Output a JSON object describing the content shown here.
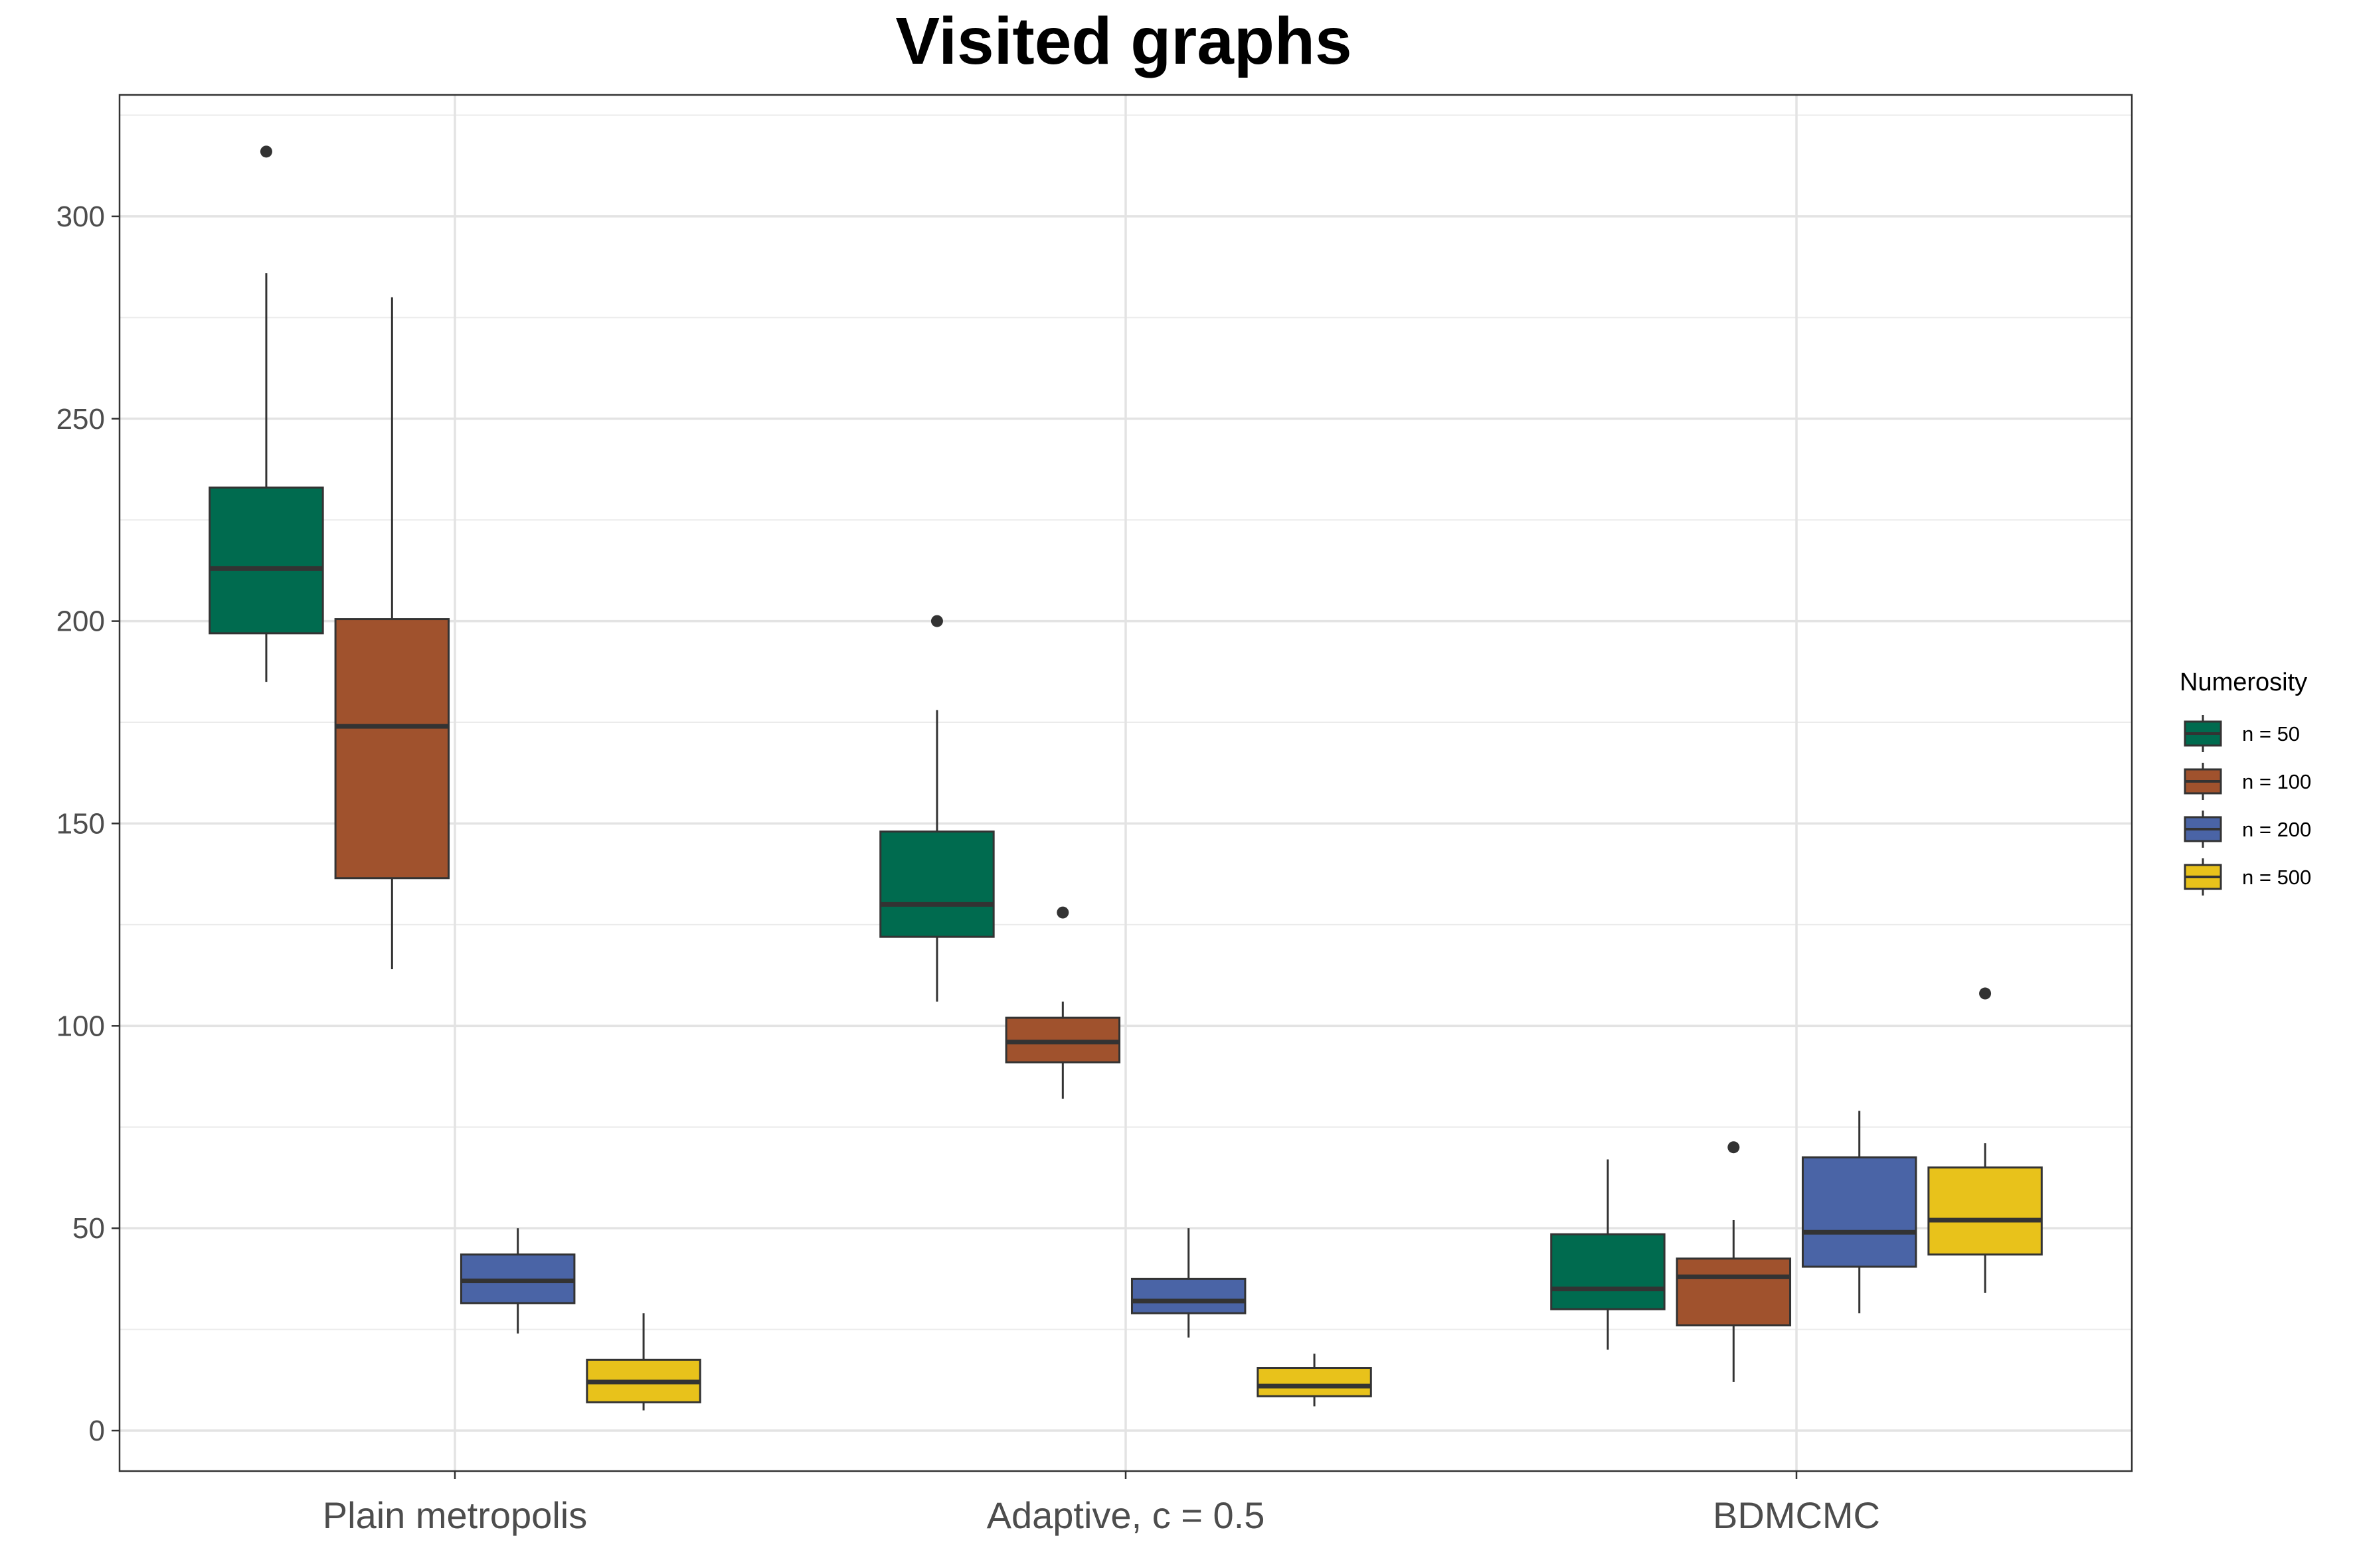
{
  "chart_data": {
    "type": "boxplot",
    "title": "Visited graphs",
    "xlabel": "",
    "ylabel": "",
    "ylim": [
      -10,
      330
    ],
    "yticks": [
      0,
      50,
      100,
      150,
      200,
      250,
      300
    ],
    "grid": true,
    "categories": [
      "Plain metropolis",
      "Adaptive, c = 0.5",
      "BDMCMC"
    ],
    "legend": {
      "title": "Numerosity",
      "position": "right"
    },
    "series": [
      {
        "name": "n = 50",
        "color": "#006b4f",
        "boxes": [
          {
            "whisker_low": 185,
            "q1": 197,
            "median": 213,
            "q3": 233,
            "whisker_high": 286,
            "outliers": [
              316
            ]
          },
          {
            "whisker_low": 106,
            "q1": 122,
            "median": 130,
            "q3": 148,
            "whisker_high": 178,
            "outliers": [
              200
            ]
          },
          {
            "whisker_low": 20,
            "q1": 30,
            "median": 35,
            "q3": 48.5,
            "whisker_high": 67,
            "outliers": []
          }
        ]
      },
      {
        "name": "n = 100",
        "color": "#a0522d",
        "boxes": [
          {
            "whisker_low": 114,
            "q1": 136.5,
            "median": 174,
            "q3": 200.5,
            "whisker_high": 280,
            "outliers": []
          },
          {
            "whisker_low": 82,
            "q1": 91,
            "median": 96,
            "q3": 102,
            "whisker_high": 106,
            "outliers": [
              128
            ]
          },
          {
            "whisker_low": 12,
            "q1": 26,
            "median": 38,
            "q3": 42.5,
            "whisker_high": 52,
            "outliers": [
              70
            ]
          }
        ]
      },
      {
        "name": "n = 200",
        "color": "#4a64a6",
        "boxes": [
          {
            "whisker_low": 24,
            "q1": 31.5,
            "median": 37,
            "q3": 43.5,
            "whisker_high": 50,
            "outliers": []
          },
          {
            "whisker_low": 23,
            "q1": 29,
            "median": 32,
            "q3": 37.5,
            "whisker_high": 50,
            "outliers": []
          },
          {
            "whisker_low": 29,
            "q1": 40.5,
            "median": 49,
            "q3": 67.5,
            "whisker_high": 79,
            "outliers": []
          }
        ]
      },
      {
        "name": "n = 500",
        "color": "#e8c21b",
        "boxes": [
          {
            "whisker_low": 5,
            "q1": 7,
            "median": 12,
            "q3": 17.5,
            "whisker_high": 29,
            "outliers": []
          },
          {
            "whisker_low": 6,
            "q1": 8.5,
            "median": 11,
            "q3": 15.5,
            "whisker_high": 19,
            "outliers": []
          },
          {
            "whisker_low": 34,
            "q1": 43.5,
            "median": 52,
            "q3": 65,
            "whisker_high": 71,
            "outliers": [
              108
            ]
          }
        ]
      }
    ]
  }
}
